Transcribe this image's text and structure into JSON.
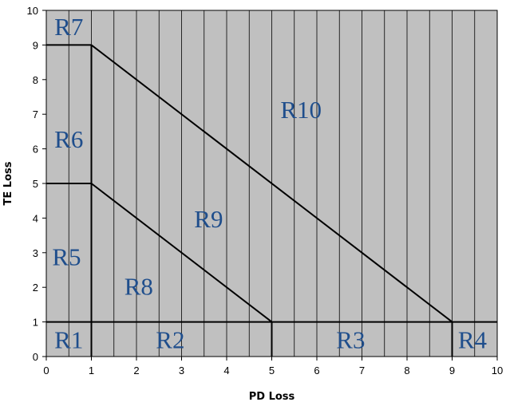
{
  "chart_data": {
    "type": "line",
    "title": "",
    "xlabel": "PD Loss",
    "ylabel": "TE Loss",
    "xlim": [
      0,
      10
    ],
    "ylim": [
      0,
      10
    ],
    "x_ticks": [
      "0",
      "1",
      "2",
      "3",
      "4",
      "5",
      "6",
      "7",
      "8",
      "9",
      "10"
    ],
    "y_ticks": [
      "0",
      "1",
      "2",
      "3",
      "4",
      "5",
      "6",
      "7",
      "8",
      "9",
      "10"
    ],
    "grid": "vertical lines every 0.5",
    "background_color": "#c0c0c0",
    "boundaries": [
      {
        "points": [
          [
            0,
            1
          ],
          [
            10,
            1
          ]
        ]
      },
      {
        "points": [
          [
            1,
            0
          ],
          [
            1,
            9
          ]
        ]
      },
      {
        "points": [
          [
            0,
            5
          ],
          [
            1,
            5
          ]
        ]
      },
      {
        "points": [
          [
            0,
            9
          ],
          [
            1,
            9
          ]
        ]
      },
      {
        "points": [
          [
            5,
            0
          ],
          [
            5,
            1
          ]
        ]
      },
      {
        "points": [
          [
            9,
            0
          ],
          [
            9,
            1
          ]
        ]
      },
      {
        "points": [
          [
            1,
            5
          ],
          [
            5,
            1
          ]
        ]
      },
      {
        "points": [
          [
            1,
            9
          ],
          [
            9,
            1
          ]
        ]
      }
    ],
    "regions": [
      {
        "label": "R1",
        "x": 0.5,
        "y": 0.4
      },
      {
        "label": "R2",
        "x": 2.75,
        "y": 0.4
      },
      {
        "label": "R3",
        "x": 6.75,
        "y": 0.4
      },
      {
        "label": "R4",
        "x": 9.45,
        "y": 0.4
      },
      {
        "label": "R5",
        "x": 0.45,
        "y": 2.8
      },
      {
        "label": "R6",
        "x": 0.5,
        "y": 6.2
      },
      {
        "label": "R7",
        "x": 0.5,
        "y": 9.45
      },
      {
        "label": "R8",
        "x": 2.05,
        "y": 1.95
      },
      {
        "label": "R9",
        "x": 3.6,
        "y": 3.9
      },
      {
        "label": "R10",
        "x": 5.65,
        "y": 7.05
      }
    ]
  }
}
